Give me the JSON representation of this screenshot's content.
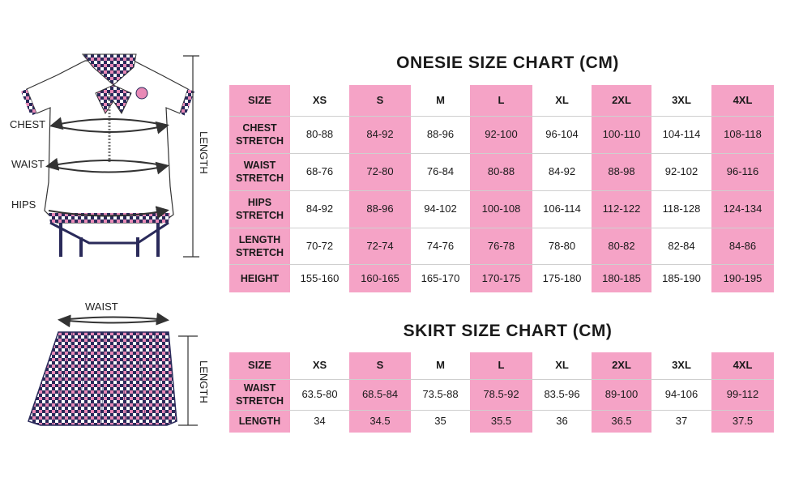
{
  "onesie": {
    "title": "ONESIE SIZE CHART (CM)",
    "columns": [
      "SIZE",
      "XS",
      "S",
      "M",
      "L",
      "XL",
      "2XL",
      "3XL",
      "4XL"
    ],
    "rows": [
      {
        "label": [
          "CHEST",
          "STRETCH"
        ],
        "values": [
          "80-88",
          "84-92",
          "88-96",
          "92-100",
          "96-104",
          "100-110",
          "104-114",
          "108-118"
        ]
      },
      {
        "label": [
          "WAIST",
          "STRETCH"
        ],
        "values": [
          "68-76",
          "72-80",
          "76-84",
          "80-88",
          "84-92",
          "88-98",
          "92-102",
          "96-116"
        ]
      },
      {
        "label": [
          "HIPS",
          "STRETCH"
        ],
        "values": [
          "84-92",
          "88-96",
          "94-102",
          "100-108",
          "106-114",
          "112-122",
          "118-128",
          "124-134"
        ]
      },
      {
        "label": [
          "LENGTH",
          "STRETCH"
        ],
        "values": [
          "70-72",
          "72-74",
          "74-76",
          "76-78",
          "78-80",
          "80-82",
          "82-84",
          "84-86"
        ]
      },
      {
        "label": [
          "HEIGHT"
        ],
        "values": [
          "155-160",
          "160-165",
          "165-170",
          "170-175",
          "175-180",
          "180-185",
          "185-190",
          "190-195"
        ]
      }
    ]
  },
  "skirt": {
    "title": "SKIRT SIZE CHART (CM)",
    "columns": [
      "SIZE",
      "XS",
      "S",
      "M",
      "L",
      "XL",
      "2XL",
      "3XL",
      "4XL"
    ],
    "rows": [
      {
        "label": [
          "WAIST",
          "STRETCH"
        ],
        "values": [
          "63.5-80",
          "68.5-84",
          "73.5-88",
          "78.5-92",
          "83.5-96",
          "89-100",
          "94-106",
          "99-112"
        ]
      },
      {
        "label": [
          "LENGTH"
        ],
        "values": [
          "34",
          "34.5",
          "35",
          "35.5",
          "36",
          "36.5",
          "37",
          "37.5"
        ]
      }
    ]
  },
  "illustration": {
    "onesie_labels": {
      "chest": "CHEST",
      "waist": "WAIST",
      "hips": "HIPS",
      "length": "LENGTH"
    },
    "skirt_labels": {
      "waist": "WAIST",
      "length": "LENGTH"
    }
  },
  "colors": {
    "pink": "#f5a3c6",
    "navy": "#2a2a5a",
    "plaid_pink": "#e889b6"
  },
  "icons": [
    "onesie-illustration",
    "skirt-illustration"
  ]
}
